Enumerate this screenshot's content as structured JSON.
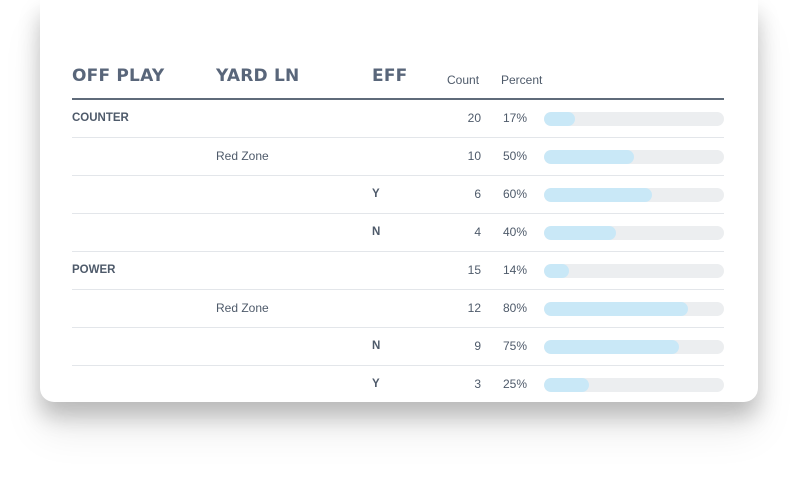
{
  "header": {
    "off_play": "OFF PLAY",
    "yard_ln": "YARD LN",
    "eff": "EFF",
    "count": "Count",
    "percent": "Percent"
  },
  "colors": {
    "bar_fill": "#c9e8f7",
    "bar_track": "#eceef0",
    "text": "#4e5a6a"
  },
  "rows": [
    {
      "play": "COUNTER",
      "yard": "",
      "eff": "",
      "count": "20",
      "percent": "17%",
      "fraction": 0.17
    },
    {
      "play": "",
      "yard": "Red Zone",
      "eff": "",
      "count": "10",
      "percent": "50%",
      "fraction": 0.5
    },
    {
      "play": "",
      "yard": "",
      "eff": "Y",
      "count": "6",
      "percent": "60%",
      "fraction": 0.6
    },
    {
      "play": "",
      "yard": "",
      "eff": "N",
      "count": "4",
      "percent": "40%",
      "fraction": 0.4
    },
    {
      "play": "POWER",
      "yard": "",
      "eff": "",
      "count": "15",
      "percent": "14%",
      "fraction": 0.14
    },
    {
      "play": "",
      "yard": "Red Zone",
      "eff": "",
      "count": "12",
      "percent": "80%",
      "fraction": 0.8
    },
    {
      "play": "",
      "yard": "",
      "eff": "N",
      "count": "9",
      "percent": "75%",
      "fraction": 0.75
    },
    {
      "play": "",
      "yard": "",
      "eff": "Y",
      "count": "3",
      "percent": "25%",
      "fraction": 0.25
    }
  ]
}
